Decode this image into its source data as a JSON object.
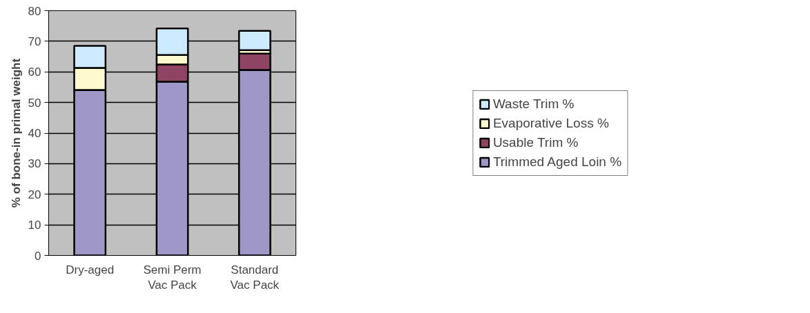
{
  "chart_data": {
    "type": "bar",
    "stacked": true,
    "ylabel": "% of bone-in primal weight",
    "categories": [
      "Dry-aged",
      "Semi Perm\nVac Pack",
      "Standard\nVac Pack"
    ],
    "series": [
      {
        "name": "Trimmed Aged Loin %",
        "color": "#9f97c8",
        "values": [
          54.1,
          56.8,
          60.6
        ]
      },
      {
        "name": "Usable Trim %",
        "color": "#8e4462",
        "values": [
          0,
          5.6,
          5.4
        ]
      },
      {
        "name": "Evaporative Loss %",
        "color": "#fffacd",
        "values": [
          7.2,
          3.1,
          1.1
        ]
      },
      {
        "name": "Waste Trim %",
        "color": "#cdeaff",
        "values": [
          7.2,
          8.7,
          6.3
        ]
      }
    ],
    "ylim": [
      0,
      80
    ],
    "yticks": [
      0,
      10,
      20,
      30,
      40,
      50,
      60,
      70,
      80
    ],
    "grid": "y",
    "legend": "right"
  }
}
